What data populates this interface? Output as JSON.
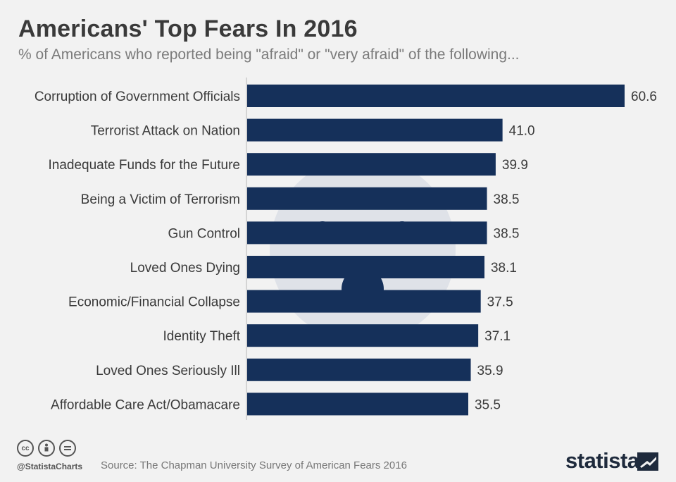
{
  "header": {
    "title": "Americans' Top Fears In 2016",
    "subtitle": "% of Americans who reported being \"afraid\" or \"very afraid\" of the following..."
  },
  "chart_data": {
    "type": "bar",
    "orientation": "horizontal",
    "categories": [
      "Corruption of Government Officials",
      "Terrorist Attack on Nation",
      "Inadequate Funds for the Future",
      "Being a Victim of Terrorism",
      "Gun Control",
      "Loved Ones Dying",
      "Economic/Financial Collapse",
      "Identity Theft",
      "Loved Ones Seriously Ill",
      "Affordable Care Act/Obamacare"
    ],
    "values": [
      60.6,
      41.0,
      39.9,
      38.5,
      38.5,
      38.1,
      37.5,
      37.1,
      35.9,
      35.5
    ],
    "value_labels": [
      "60.6",
      "41.0",
      "39.9",
      "38.5",
      "38.5",
      "38.1",
      "37.5",
      "37.1",
      "35.9",
      "35.5"
    ],
    "xlim": [
      0,
      60.6
    ],
    "bar_color": "#15305a",
    "grid": false,
    "legend": "none"
  },
  "footer": {
    "handle": "@StatistaCharts",
    "source": "Source: The Chapman University Survey of American Fears 2016",
    "brand": "statista",
    "license_icons": [
      "cc-icon",
      "attribution-icon",
      "no-derivatives-icon"
    ]
  }
}
